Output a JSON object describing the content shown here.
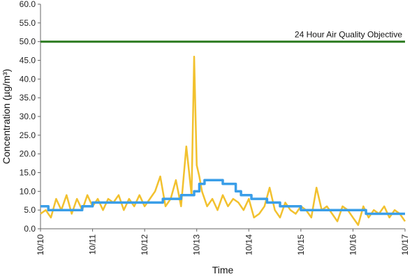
{
  "chart_data": {
    "type": "line",
    "title": "",
    "xlabel": "Time",
    "ylabel": "Concentration (µg/m³)",
    "ylim": [
      0,
      60
    ],
    "y_ticks": [
      "0.0",
      "5.0",
      "10.0",
      "15.0",
      "20.0",
      "25.0",
      "30.0",
      "35.0",
      "40.0",
      "45.0",
      "50.0",
      "55.0",
      "60.0"
    ],
    "x_ticks": [
      "10/10",
      "10/11",
      "10/12",
      "10/13",
      "10/14",
      "10/15",
      "10/16",
      "10/17"
    ],
    "xlim": [
      0,
      7
    ],
    "grid": false,
    "annotations": [
      {
        "text": "24 Hour Air Quality Objective",
        "y": 50
      }
    ],
    "series": [
      {
        "name": "",
        "color": "#f2c12e",
        "x": [
          0,
          0.1,
          0.2,
          0.3,
          0.4,
          0.5,
          0.6,
          0.7,
          0.8,
          0.9,
          1.0,
          1.1,
          1.2,
          1.3,
          1.4,
          1.5,
          1.6,
          1.7,
          1.8,
          1.9,
          2.0,
          2.1,
          2.2,
          2.3,
          2.4,
          2.5,
          2.6,
          2.7,
          2.8,
          2.9,
          2.95,
          3.0,
          3.05,
          3.1,
          3.2,
          3.3,
          3.4,
          3.5,
          3.6,
          3.7,
          3.8,
          3.9,
          4.0,
          4.1,
          4.2,
          4.3,
          4.4,
          4.5,
          4.6,
          4.7,
          4.8,
          4.9,
          5.0,
          5.1,
          5.2,
          5.3,
          5.4,
          5.5,
          5.6,
          5.7,
          5.8,
          5.9,
          6.0,
          6.1,
          6.2,
          6.3,
          6.4,
          6.5,
          6.6,
          6.7,
          6.8,
          6.9,
          7.0
        ],
        "values": [
          4,
          5,
          3,
          8,
          5,
          9,
          4,
          8,
          5,
          9,
          6,
          8,
          5,
          8,
          7,
          9,
          5,
          8,
          6,
          9,
          6,
          8,
          10,
          14,
          6,
          8,
          13,
          6,
          22,
          9,
          46,
          17,
          14,
          10,
          6,
          8,
          5,
          9,
          6,
          8,
          7,
          5,
          8,
          3,
          4,
          6,
          11,
          5,
          3,
          7,
          5,
          4,
          6,
          5,
          3,
          11,
          5,
          6,
          4,
          2,
          6,
          5,
          3,
          1,
          6,
          3,
          5,
          4,
          6,
          3,
          5,
          4,
          2
        ]
      },
      {
        "name": "",
        "color": "#3a9ee8",
        "x": [
          0,
          0.15,
          0.15,
          0.8,
          0.8,
          1.0,
          1.0,
          2.35,
          2.35,
          2.7,
          2.7,
          2.95,
          2.95,
          3.05,
          3.05,
          3.15,
          3.15,
          3.5,
          3.5,
          3.75,
          3.75,
          3.85,
          3.85,
          4.05,
          4.05,
          4.35,
          4.35,
          4.6,
          4.6,
          5.0,
          5.0,
          5.35,
          5.35,
          6.15,
          6.15,
          6.25,
          6.25,
          7.0
        ],
        "values": [
          6,
          6,
          5,
          5,
          6,
          6,
          7,
          7,
          8,
          8,
          9,
          9,
          10,
          10,
          12,
          12,
          13,
          13,
          12,
          12,
          10,
          10,
          9,
          9,
          8,
          8,
          7,
          7,
          6,
          6,
          5,
          5,
          5,
          5,
          5,
          5,
          4,
          4
        ]
      },
      {
        "name": "",
        "color": "#2a7a1e",
        "x": [
          0,
          7
        ],
        "values": [
          50,
          50
        ]
      }
    ]
  }
}
